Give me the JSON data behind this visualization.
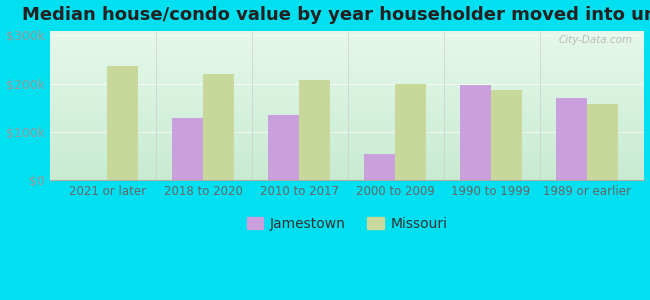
{
  "title": "Median house/condo value by year householder moved into unit",
  "categories": [
    "2021 or later",
    "2018 to 2020",
    "2010 to 2017",
    "2000 to 2009",
    "1990 to 1999",
    "1989 or earlier"
  ],
  "jamestown": [
    null,
    130000,
    135000,
    55000,
    197000,
    170000
  ],
  "missouri": [
    237000,
    220000,
    207000,
    200000,
    188000,
    158000
  ],
  "jamestown_color": "#c9a0dc",
  "missouri_color": "#c8d89a",
  "background_outer": "#00e0f0",
  "yticks": [
    0,
    100000,
    200000,
    300000
  ],
  "ylim": [
    0,
    310000
  ],
  "bar_width": 0.32,
  "legend_jamestown": "Jamestown",
  "legend_missouri": "Missouri",
  "watermark": "City-Data.com",
  "title_fontsize": 13,
  "tick_color": "#999999",
  "xlabel_fontsize": 8.5,
  "ylabel_fontsize": 9
}
